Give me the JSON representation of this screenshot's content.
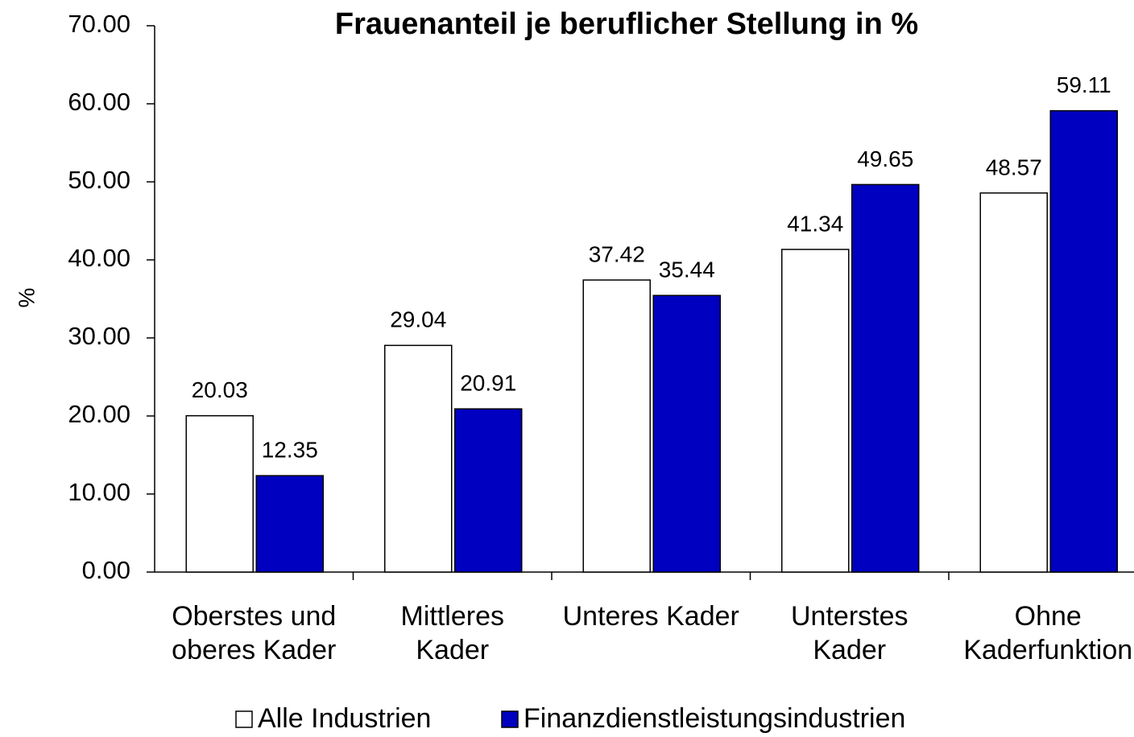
{
  "chart_data": {
    "type": "bar",
    "title": "Frauenanteil je beruflicher Stellung in %",
    "y_label": "%",
    "categories": [
      "Oberstes und\noberes Kader",
      "Mittleres\nKader",
      "Unteres Kader",
      "Unterstes\nKader",
      "Ohne\nKaderfunktion"
    ],
    "series": [
      {
        "name": "Alle Industrien",
        "color": "#ffffff",
        "values": [
          20.03,
          29.04,
          37.42,
          41.34,
          48.57
        ]
      },
      {
        "name": "Finanzdienstleistungsindustrien",
        "color": "#0000c0",
        "values": [
          12.35,
          20.91,
          35.44,
          49.65,
          59.11
        ]
      }
    ],
    "ylim": [
      0,
      70
    ],
    "yticks": [
      {
        "value": 0,
        "label": "0.00"
      },
      {
        "value": 10,
        "label": "10.00"
      },
      {
        "value": 20,
        "label": "20.00"
      },
      {
        "value": 30,
        "label": "30.00"
      },
      {
        "value": 40,
        "label": "40.00"
      },
      {
        "value": 50,
        "label": "50.00"
      },
      {
        "value": 60,
        "label": "60.00"
      },
      {
        "value": 70,
        "label": "70.00"
      }
    ],
    "legend": "bottom"
  }
}
